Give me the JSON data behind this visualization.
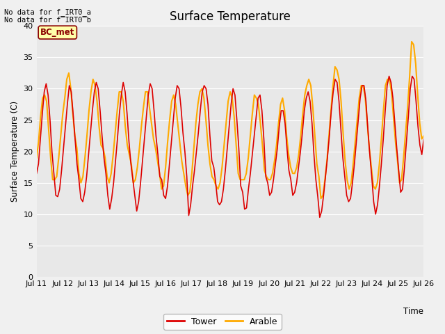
{
  "title": "Surface Temperature",
  "xlabel": "Time",
  "ylabel": "Surface Temperature (C)",
  "ylim": [
    0,
    40
  ],
  "yticks": [
    0,
    5,
    10,
    15,
    20,
    25,
    30,
    35,
    40
  ],
  "fig_bg_color": "#f0f0f0",
  "plot_bg_color": "#e8e8e8",
  "tower_color": "#dd0000",
  "arable_color": "#ffaa00",
  "annotation_text1": "No data for f_IRT0_a",
  "annotation_text2": "No data for f̅IRT0̅b",
  "bc_met_label": "BC_met",
  "legend_tower": "Tower",
  "legend_arable": "Arable",
  "tower_data": [
    16.5,
    18.0,
    22.0,
    26.0,
    29.5,
    30.8,
    29.0,
    25.0,
    20.0,
    16.5,
    13.0,
    12.8,
    14.0,
    17.0,
    20.5,
    24.0,
    27.5,
    30.5,
    29.5,
    26.0,
    22.0,
    18.0,
    15.5,
    12.5,
    12.0,
    13.5,
    16.0,
    19.5,
    23.0,
    26.5,
    29.5,
    31.0,
    30.0,
    26.5,
    22.5,
    19.0,
    16.5,
    13.0,
    10.8,
    12.5,
    15.0,
    18.5,
    22.0,
    26.0,
    29.0,
    31.0,
    29.5,
    26.0,
    21.5,
    18.0,
    15.5,
    13.0,
    10.5,
    12.0,
    15.0,
    18.5,
    22.0,
    25.5,
    29.0,
    30.8,
    30.0,
    26.5,
    22.5,
    19.5,
    16.0,
    15.5,
    13.0,
    12.5,
    14.5,
    18.0,
    21.5,
    25.0,
    28.5,
    30.5,
    30.0,
    27.0,
    23.0,
    20.0,
    16.0,
    9.8,
    11.5,
    14.5,
    17.0,
    20.0,
    23.0,
    26.5,
    29.5,
    30.5,
    30.0,
    27.5,
    22.5,
    18.5,
    17.5,
    15.0,
    12.0,
    11.5,
    12.0,
    14.0,
    17.0,
    20.5,
    24.0,
    27.5,
    30.0,
    29.0,
    25.0,
    20.5,
    14.5,
    13.5,
    10.8,
    11.0,
    14.0,
    16.5,
    19.5,
    22.5,
    25.5,
    28.5,
    29.0,
    26.5,
    22.0,
    16.0,
    15.0,
    13.0,
    13.5,
    15.5,
    18.0,
    20.5,
    24.0,
    26.5,
    26.5,
    24.5,
    20.5,
    17.0,
    15.5,
    13.0,
    13.5,
    15.0,
    17.5,
    20.0,
    23.0,
    26.5,
    28.5,
    29.5,
    28.0,
    24.5,
    19.5,
    15.5,
    12.8,
    9.5,
    10.5,
    13.0,
    16.0,
    19.0,
    22.5,
    26.5,
    29.5,
    31.5,
    31.0,
    28.0,
    23.5,
    19.0,
    16.0,
    13.0,
    12.0,
    12.5,
    15.0,
    18.0,
    21.5,
    25.0,
    28.5,
    30.5,
    30.5,
    28.0,
    23.5,
    19.5,
    16.0,
    12.0,
    10.0,
    11.5,
    14.5,
    18.0,
    22.0,
    26.5,
    30.5,
    32.0,
    31.0,
    28.5,
    24.5,
    20.5,
    17.0,
    13.5,
    14.0,
    17.5,
    21.5,
    25.5,
    30.0,
    32.0,
    31.5,
    28.0,
    24.0,
    21.0,
    19.5,
    22.0
  ],
  "arable_data": [
    19.0,
    21.5,
    25.5,
    28.5,
    29.0,
    28.0,
    23.5,
    19.0,
    15.5,
    15.5,
    16.0,
    19.0,
    22.5,
    26.0,
    28.5,
    31.5,
    32.5,
    30.0,
    26.0,
    22.5,
    20.5,
    16.5,
    15.0,
    16.0,
    19.0,
    22.5,
    26.5,
    29.5,
    31.5,
    30.5,
    28.0,
    24.0,
    21.0,
    20.5,
    19.0,
    16.0,
    15.0,
    16.5,
    19.5,
    23.0,
    26.5,
    29.5,
    29.5,
    28.0,
    24.0,
    21.0,
    19.5,
    18.0,
    15.0,
    15.5,
    17.5,
    20.5,
    24.0,
    27.0,
    29.5,
    29.5,
    27.0,
    24.5,
    22.0,
    20.5,
    18.5,
    16.5,
    14.0,
    14.5,
    17.5,
    21.5,
    25.0,
    28.0,
    29.0,
    27.5,
    24.5,
    21.5,
    18.5,
    16.5,
    14.5,
    13.0,
    13.5,
    16.5,
    20.5,
    24.5,
    27.5,
    29.5,
    30.0,
    28.5,
    25.0,
    21.0,
    18.0,
    16.0,
    15.5,
    14.5,
    14.0,
    15.0,
    17.5,
    21.0,
    24.5,
    28.0,
    29.5,
    28.5,
    25.5,
    21.0,
    16.5,
    15.5,
    15.5,
    15.5,
    16.5,
    19.0,
    22.5,
    26.0,
    29.0,
    28.5,
    27.5,
    24.5,
    21.0,
    17.0,
    16.0,
    15.5,
    15.5,
    16.5,
    18.5,
    21.0,
    24.5,
    27.5,
    28.5,
    26.5,
    22.5,
    19.5,
    17.5,
    16.5,
    16.5,
    17.5,
    19.5,
    22.5,
    26.0,
    29.0,
    30.5,
    31.5,
    30.5,
    27.0,
    22.5,
    18.0,
    16.0,
    12.5,
    13.0,
    15.5,
    18.5,
    22.5,
    26.5,
    30.5,
    33.5,
    33.0,
    31.5,
    28.0,
    23.0,
    18.5,
    15.5,
    14.0,
    15.0,
    18.0,
    21.5,
    25.0,
    28.5,
    30.5,
    30.5,
    28.5,
    24.5,
    20.5,
    17.5,
    14.5,
    14.0,
    15.0,
    18.0,
    22.0,
    26.5,
    30.5,
    31.5,
    31.5,
    29.5,
    25.5,
    21.5,
    18.5,
    15.0,
    15.5,
    19.0,
    23.0,
    27.0,
    32.0,
    37.5,
    37.0,
    34.0,
    29.0,
    24.5,
    22.0,
    22.5
  ],
  "day_labels": [
    "Jul 11",
    "Jul 12",
    "Jul 13",
    "Jul 14",
    "Jul 15",
    "Jul 16",
    "Jul 17",
    "Jul 18",
    "Jul 19",
    "Jul 20",
    "Jul 21",
    "Jul 22",
    "Jul 23",
    "Jul 24",
    "Jul 25",
    "Jul 26"
  ]
}
